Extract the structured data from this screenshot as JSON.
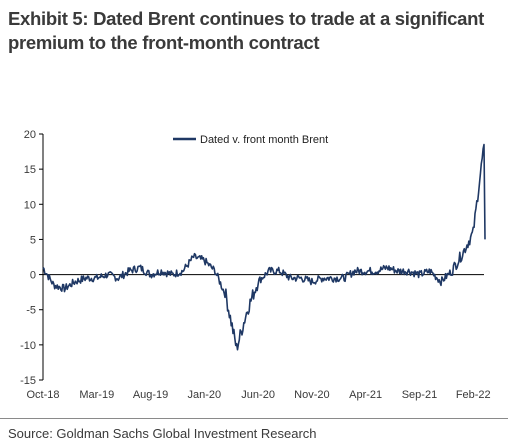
{
  "title": "Exhibit 5: Dated Brent continues to trade at a significant premium to the front-month contract",
  "source": "Source: Goldman Sachs Global Investment Research",
  "colors": {
    "series": "#1f3864",
    "axis": "#000000",
    "text": "#3a3a3a"
  },
  "chart_data": {
    "type": "line",
    "title": "",
    "xlabel": "",
    "ylabel": "",
    "ylim": [
      -15,
      20
    ],
    "yticks": [
      -15,
      -10,
      -5,
      0,
      5,
      10,
      15,
      20
    ],
    "xticks": [
      "Oct-18",
      "Mar-19",
      "Aug-19",
      "Jan-20",
      "Jun-20",
      "Nov-20",
      "Apr-21",
      "Sep-21",
      "Feb-22"
    ],
    "xrange": [
      "2018-10",
      "2022-03"
    ],
    "legend_position": "top-center",
    "grid": false,
    "series": [
      {
        "name": "Dated v. front month Brent",
        "x": [
          "2018-10",
          "2018-11",
          "2018-12",
          "2019-01",
          "2019-02",
          "2019-03",
          "2019-04",
          "2019-05",
          "2019-06",
          "2019-07",
          "2019-08",
          "2019-09",
          "2019-10",
          "2019-11",
          "2019-12",
          "2020-01",
          "2020-02",
          "2020-03",
          "2020-04",
          "2020-05",
          "2020-06",
          "2020-07",
          "2020-08",
          "2020-09",
          "2020-10",
          "2020-11",
          "2020-12",
          "2021-01",
          "2021-02",
          "2021-03",
          "2021-04",
          "2021-05",
          "2021-06",
          "2021-07",
          "2021-08",
          "2021-09",
          "2021-10",
          "2021-11",
          "2021-12",
          "2022-01",
          "2022-02",
          "2022-03"
        ],
        "values": [
          1.0,
          -1.5,
          -2.0,
          -1.0,
          -0.5,
          -0.5,
          0.0,
          -0.5,
          0.5,
          1.0,
          0.0,
          0.5,
          0.0,
          0.5,
          2.5,
          2.0,
          0.5,
          -3.0,
          -10.5,
          -5.0,
          -1.0,
          0.5,
          0.5,
          -0.5,
          -0.5,
          -1.0,
          -0.5,
          -0.5,
          -0.5,
          0.5,
          0.5,
          0.5,
          1.0,
          0.5,
          0.5,
          0.0,
          0.5,
          -1.0,
          0.5,
          3.0,
          6.0,
          18.5
        ]
      }
    ]
  }
}
